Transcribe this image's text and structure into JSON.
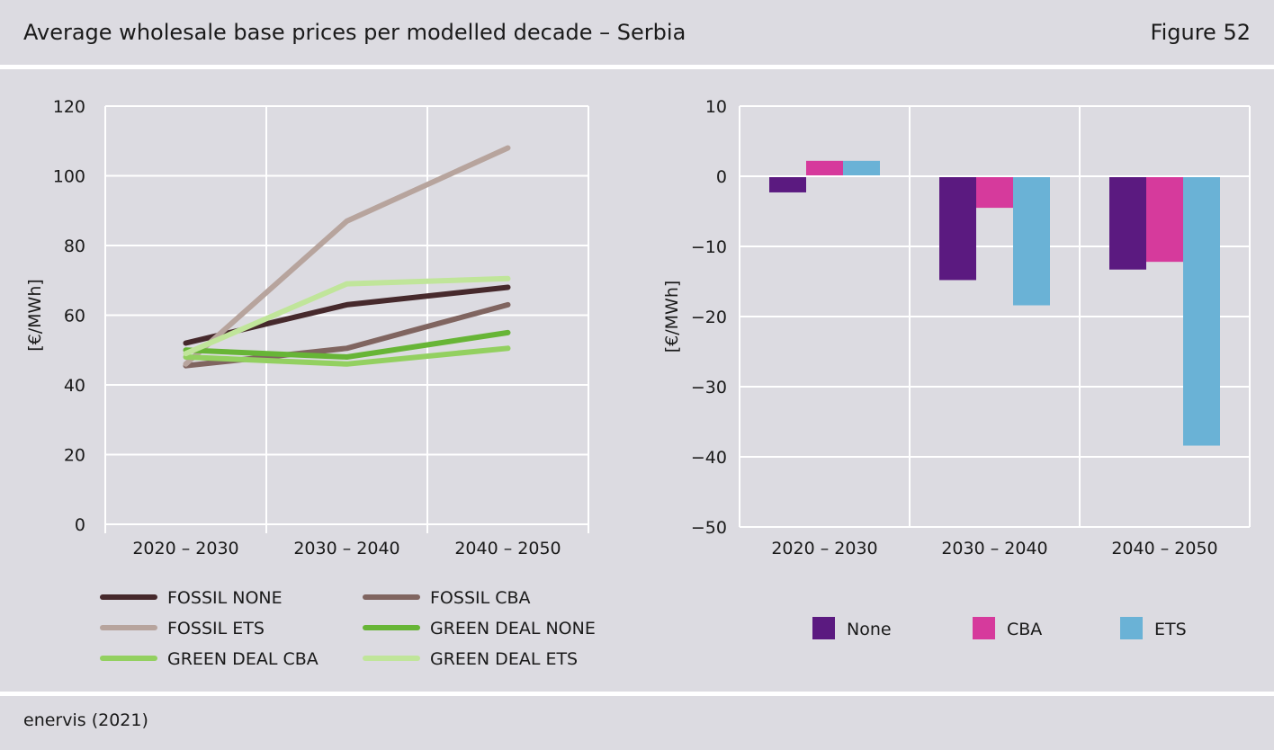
{
  "header": {
    "title": "Average wholesale base prices per modelled decade – Serbia",
    "figure": "Figure 52"
  },
  "footer": {
    "source": "enervis (2021)"
  },
  "chart_data": [
    {
      "type": "line",
      "categories": [
        "2020 – 2030",
        "2030 – 2040",
        "2040 – 2050"
      ],
      "ylabel": "[€/MWh]",
      "ylim": [
        0,
        120
      ],
      "yticks": [
        0,
        20,
        40,
        60,
        80,
        100,
        120
      ],
      "grid": true,
      "legend_position": "bottom",
      "series": [
        {
          "name": "FOSSIL NONE",
          "color": "#46292c",
          "values": [
            52,
            63,
            68
          ]
        },
        {
          "name": "FOSSIL CBA",
          "color": "#806560",
          "values": [
            45.5,
            50.5,
            63
          ]
        },
        {
          "name": "FOSSIL ETS",
          "color": "#b7a49d",
          "values": [
            46,
            87,
            108
          ]
        },
        {
          "name": "GREEN DEAL NONE",
          "color": "#67b536",
          "values": [
            50,
            48,
            55
          ]
        },
        {
          "name": "GREEN DEAL CBA",
          "color": "#93d060",
          "values": [
            48,
            46,
            50.5
          ]
        },
        {
          "name": "GREEN DEAL ETS",
          "color": "#c0e59a",
          "values": [
            49,
            69,
            70.5
          ]
        }
      ]
    },
    {
      "type": "bar",
      "categories": [
        "2020 – 2030",
        "2030 – 2040",
        "2040 – 2050"
      ],
      "ylabel": "[€/MWh]",
      "ylim": [
        -50,
        10
      ],
      "yticks": [
        10,
        0,
        -10,
        -20,
        -30,
        -40,
        -50
      ],
      "grid": true,
      "legend_position": "bottom",
      "series": [
        {
          "name": "None",
          "color": "#5b1a80",
          "values": [
            -2.3,
            -14.8,
            -13.3
          ]
        },
        {
          "name": "CBA",
          "color": "#d63a9c",
          "values": [
            2.2,
            -4.5,
            -12.2
          ]
        },
        {
          "name": "ETS",
          "color": "#6ab2d6",
          "values": [
            2.2,
            -18.4,
            -38.4
          ]
        }
      ]
    }
  ]
}
